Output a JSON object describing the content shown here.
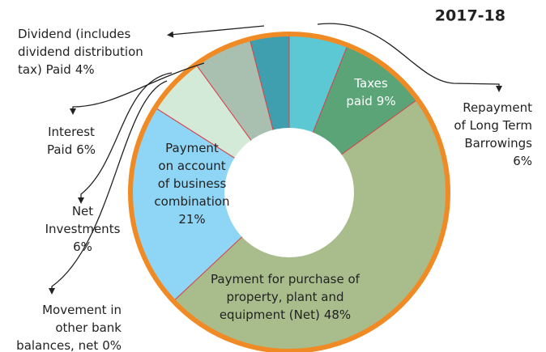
{
  "chart_data": {
    "type": "donut",
    "title": "2017-18",
    "categories": [
      [
        "Repayment",
        "of Long Term",
        "Barrowings"
      ],
      [
        "Taxes",
        "paid"
      ],
      [
        "Payment for purchase of",
        "property, plant and",
        "equipment (Net)"
      ],
      [
        "Payment",
        "on account",
        "of business",
        "combination"
      ],
      [
        "Movement in",
        "other bank",
        "balances, net"
      ],
      [
        "Net",
        "Investments"
      ],
      [
        "Interest",
        "Paid"
      ],
      [
        "Dividend (includes",
        "dividend distribution",
        "tax) Paid"
      ]
    ],
    "values": [
      6,
      9,
      48,
      21,
      0,
      6,
      6,
      4
    ],
    "value_labels": [
      "6%",
      "9%",
      "48%",
      "21%",
      "0%",
      "6%",
      "6%",
      "4%"
    ],
    "colors": [
      "#5bc8d4",
      "#5aa478",
      "#a9bd8c",
      "#8fd5f6",
      "#8fd5f6",
      "#d3ead8",
      "#a9c0b0",
      "#3f9fae"
    ]
  }
}
